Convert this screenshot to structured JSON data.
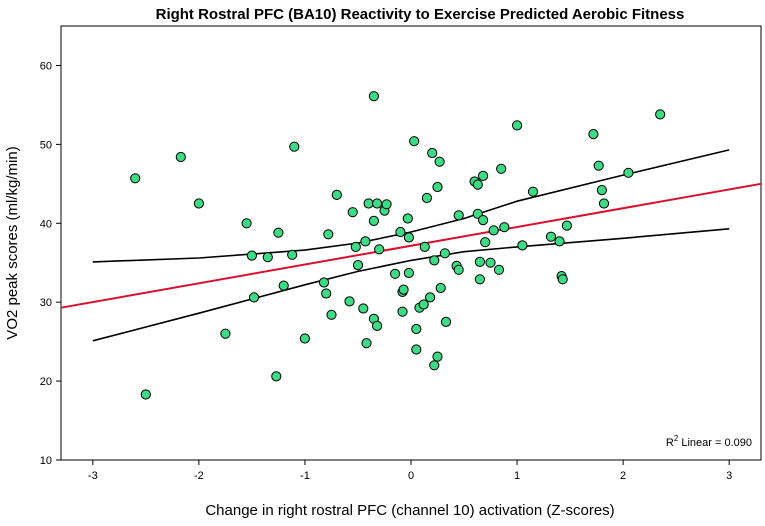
{
  "chart_data": {
    "type": "scatter",
    "title": "Right Rostral PFC (BA10) Reactivity to Exercise Predicted Aerobic Fitness",
    "xlabel": "Change in right rostral PFC (channel 10) activation (Z-scores)",
    "ylabel": "VO2 peak scores (ml/kg/min)",
    "xlim": [
      -3.3,
      3.3
    ],
    "ylim": [
      10,
      65
    ],
    "xticks": [
      -3,
      -2,
      -1,
      0,
      1,
      2,
      3
    ],
    "yticks": [
      10,
      20,
      30,
      40,
      50,
      60
    ],
    "point_color": "#3ddc84",
    "fit_line_color": "#d8102e",
    "ci_line_color": "#000000",
    "annotation": {
      "r_prefix": "R",
      "r_sup": "2",
      "text": " Linear = 0.090"
    },
    "fit_line": {
      "x": [
        -3.3,
        3.3
      ],
      "y": [
        29.3,
        45.0
      ]
    },
    "ci_upper": {
      "x": [
        -3,
        -2,
        -1,
        -0.5,
        0,
        0.5,
        1,
        2,
        3
      ],
      "y": [
        35.1,
        35.6,
        36.6,
        37.5,
        38.9,
        40.6,
        42.8,
        46.1,
        49.3
      ]
    },
    "ci_lower": {
      "x": [
        -3,
        -2,
        -1,
        -0.5,
        0,
        0.5,
        1,
        2,
        3
      ],
      "y": [
        25.1,
        28.6,
        32.2,
        33.9,
        35.3,
        36.4,
        37.0,
        38.1,
        39.3
      ]
    },
    "points": [
      {
        "x": -2.6,
        "y": 45.7
      },
      {
        "x": -2.5,
        "y": 18.3
      },
      {
        "x": -2.17,
        "y": 48.4
      },
      {
        "x": -2.0,
        "y": 42.5
      },
      {
        "x": -1.75,
        "y": 26.0
      },
      {
        "x": -1.55,
        "y": 40.0
      },
      {
        "x": -1.5,
        "y": 35.9
      },
      {
        "x": -1.48,
        "y": 30.6
      },
      {
        "x": -1.35,
        "y": 35.7
      },
      {
        "x": -1.27,
        "y": 20.6
      },
      {
        "x": -1.25,
        "y": 38.8
      },
      {
        "x": -1.2,
        "y": 32.1
      },
      {
        "x": -1.12,
        "y": 36.0
      },
      {
        "x": -1.1,
        "y": 49.7
      },
      {
        "x": -1.0,
        "y": 25.4
      },
      {
        "x": -0.82,
        "y": 32.5
      },
      {
        "x": -0.8,
        "y": 31.1
      },
      {
        "x": -0.78,
        "y": 38.6
      },
      {
        "x": -0.75,
        "y": 28.4
      },
      {
        "x": -0.7,
        "y": 43.6
      },
      {
        "x": -0.58,
        "y": 30.1
      },
      {
        "x": -0.55,
        "y": 41.4
      },
      {
        "x": -0.52,
        "y": 37.0
      },
      {
        "x": -0.5,
        "y": 34.7
      },
      {
        "x": -0.45,
        "y": 29.2
      },
      {
        "x": -0.43,
        "y": 37.7
      },
      {
        "x": -0.42,
        "y": 24.8
      },
      {
        "x": -0.4,
        "y": 42.5
      },
      {
        "x": -0.35,
        "y": 40.3
      },
      {
        "x": -0.35,
        "y": 56.1
      },
      {
        "x": -0.35,
        "y": 27.9
      },
      {
        "x": -0.32,
        "y": 27.0
      },
      {
        "x": -0.32,
        "y": 42.5
      },
      {
        "x": -0.3,
        "y": 36.7
      },
      {
        "x": -0.25,
        "y": 41.6
      },
      {
        "x": -0.23,
        "y": 42.4
      },
      {
        "x": -0.15,
        "y": 33.6
      },
      {
        "x": -0.1,
        "y": 38.9
      },
      {
        "x": -0.08,
        "y": 31.3
      },
      {
        "x": -0.08,
        "y": 28.8
      },
      {
        "x": -0.07,
        "y": 31.6
      },
      {
        "x": -0.03,
        "y": 40.6
      },
      {
        "x": -0.02,
        "y": 33.7
      },
      {
        "x": -0.02,
        "y": 38.2
      },
      {
        "x": 0.03,
        "y": 50.4
      },
      {
        "x": 0.05,
        "y": 26.6
      },
      {
        "x": 0.05,
        "y": 24.0
      },
      {
        "x": 0.08,
        "y": 29.3
      },
      {
        "x": 0.12,
        "y": 29.7
      },
      {
        "x": 0.13,
        "y": 37.0
      },
      {
        "x": 0.15,
        "y": 43.2
      },
      {
        "x": 0.18,
        "y": 30.6
      },
      {
        "x": 0.2,
        "y": 48.9
      },
      {
        "x": 0.22,
        "y": 22.0
      },
      {
        "x": 0.22,
        "y": 35.3
      },
      {
        "x": 0.25,
        "y": 44.6
      },
      {
        "x": 0.25,
        "y": 23.1
      },
      {
        "x": 0.27,
        "y": 47.8
      },
      {
        "x": 0.28,
        "y": 31.8
      },
      {
        "x": 0.32,
        "y": 36.2
      },
      {
        "x": 0.33,
        "y": 27.5
      },
      {
        "x": 0.43,
        "y": 34.6
      },
      {
        "x": 0.45,
        "y": 34.1
      },
      {
        "x": 0.45,
        "y": 41.0
      },
      {
        "x": 0.6,
        "y": 45.3
      },
      {
        "x": 0.63,
        "y": 41.2
      },
      {
        "x": 0.63,
        "y": 44.9
      },
      {
        "x": 0.65,
        "y": 35.1
      },
      {
        "x": 0.65,
        "y": 32.9
      },
      {
        "x": 0.68,
        "y": 46.0
      },
      {
        "x": 0.68,
        "y": 40.4
      },
      {
        "x": 0.7,
        "y": 37.6
      },
      {
        "x": 0.75,
        "y": 35.0
      },
      {
        "x": 0.78,
        "y": 39.1
      },
      {
        "x": 0.83,
        "y": 34.1
      },
      {
        "x": 0.85,
        "y": 46.9
      },
      {
        "x": 0.88,
        "y": 39.5
      },
      {
        "x": 1.0,
        "y": 52.4
      },
      {
        "x": 1.05,
        "y": 37.2
      },
      {
        "x": 1.15,
        "y": 44.0
      },
      {
        "x": 1.32,
        "y": 38.3
      },
      {
        "x": 1.4,
        "y": 37.7
      },
      {
        "x": 1.42,
        "y": 33.3
      },
      {
        "x": 1.43,
        "y": 32.9
      },
      {
        "x": 1.47,
        "y": 39.7
      },
      {
        "x": 1.72,
        "y": 51.3
      },
      {
        "x": 1.77,
        "y": 47.3
      },
      {
        "x": 1.8,
        "y": 44.2
      },
      {
        "x": 1.82,
        "y": 42.5
      },
      {
        "x": 2.05,
        "y": 46.4
      },
      {
        "x": 2.35,
        "y": 53.8
      }
    ]
  }
}
